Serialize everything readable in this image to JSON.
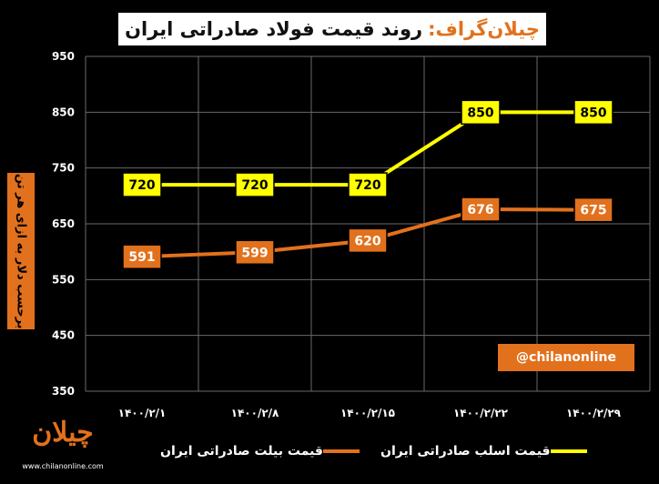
{
  "header": {
    "brand": "چیلان‌گراف:",
    "title": "روند قیمت فولاد صادراتی ایران"
  },
  "watermark": "@chilanonline",
  "logo": {
    "word": "چیلان",
    "site": "www.chilanonline.com"
  },
  "colors": {
    "background": "#000000",
    "accent": "#e2711d",
    "yellow": "#ffff00",
    "grid": "#6a6a6a"
  },
  "chart_data": {
    "type": "line",
    "title": "روند قیمت فولاد صادراتی ایران",
    "ylabel": "برحسب دلار به ازای هر تن",
    "xlabel": "",
    "categories": [
      "۱۴۰۰/۲/۱",
      "۱۴۰۰/۲/۸",
      "۱۴۰۰/۲/۱۵",
      "۱۴۰۰/۲/۲۲",
      "۱۴۰۰/۲/۲۹"
    ],
    "ylim": [
      350,
      950
    ],
    "yticks": [
      350,
      450,
      550,
      650,
      750,
      850,
      950
    ],
    "grid": true,
    "legend_position": "bottom",
    "series": [
      {
        "name": "قیمت اسلب صادراتی ایران",
        "color": "#ffff00",
        "values": [
          720,
          720,
          720,
          850,
          850
        ]
      },
      {
        "name": "قیمت بیلت صادراتی ایران",
        "color": "#e2711d",
        "values": [
          591,
          599,
          620,
          676,
          675
        ]
      }
    ]
  }
}
